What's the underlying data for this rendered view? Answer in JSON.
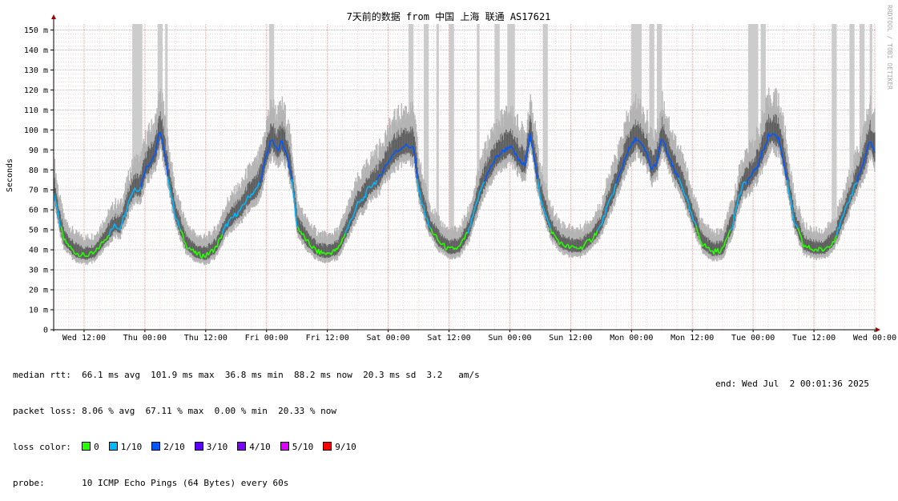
{
  "chart_data": {
    "type": "line",
    "title": "7天前的数据 from 中国 上海 联通 AS17621",
    "ylabel": "Seconds",
    "watermark": "RRDTOOL / TOBI OETIKER",
    "ylim": [
      0,
      153
    ],
    "ytick_unit_suffix": " m",
    "yticks": [
      0,
      10,
      20,
      30,
      40,
      50,
      60,
      70,
      80,
      90,
      100,
      110,
      120,
      130,
      140,
      150
    ],
    "xticks": [
      "Wed 12:00",
      "Thu 00:00",
      "Thu 12:00",
      "Fri 00:00",
      "Fri 12:00",
      "Sat 00:00",
      "Sat 12:00",
      "Sun 00:00",
      "Sun 12:00",
      "Mon 00:00",
      "Mon 12:00",
      "Tue 00:00",
      "Tue 12:00",
      "Wed 00:00"
    ],
    "x_unit": "hours since Wed 00:00",
    "x_start": 6.0,
    "x_end": 168.0,
    "grid": true,
    "series": [
      {
        "name": "median rtt",
        "x": [
          6,
          7,
          8,
          10,
          12,
          14,
          16,
          18,
          19,
          20,
          21,
          22,
          23,
          24,
          25,
          26,
          27,
          28,
          29,
          30,
          32,
          34,
          36,
          38,
          40,
          42,
          43,
          44,
          45,
          46,
          47,
          48,
          49,
          50,
          51,
          52,
          53,
          54,
          56,
          58,
          60,
          62,
          64,
          66,
          67,
          68,
          69,
          70,
          71,
          72,
          73,
          74,
          75,
          76,
          77,
          78,
          80,
          82,
          84,
          86,
          88,
          90,
          91,
          92,
          93,
          94,
          95,
          96,
          97,
          98,
          99,
          100,
          101,
          102,
          104,
          106,
          108,
          110,
          112,
          114,
          115,
          116,
          117,
          118,
          119,
          120,
          121,
          122,
          123,
          124,
          125,
          126,
          128,
          130,
          132,
          134,
          136,
          138,
          139,
          140,
          141,
          142,
          143,
          144,
          145,
          146,
          147,
          148,
          149,
          150,
          152,
          154,
          156,
          158,
          160,
          162,
          163,
          164,
          165,
          166,
          167,
          168
        ],
        "values": [
          70,
          55,
          45,
          39,
          37,
          38,
          45,
          52,
          51,
          58,
          66,
          71,
          70,
          80,
          84,
          88,
          100,
          86,
          70,
          57,
          43,
          38,
          37,
          41,
          52,
          58,
          60,
          65,
          68,
          70,
          76,
          88,
          95,
          90,
          94,
          88,
          75,
          52,
          44,
          39,
          38,
          40,
          51,
          63,
          65,
          70,
          73,
          75,
          80,
          84,
          88,
          90,
          92,
          92,
          91,
          70,
          52,
          44,
          40,
          41,
          50,
          68,
          75,
          80,
          85,
          88,
          90,
          92,
          88,
          84,
          82,
          99,
          82,
          67,
          50,
          43,
          41,
          41,
          45,
          52,
          60,
          66,
          73,
          80,
          88,
          92,
          96,
          92,
          88,
          80,
          84,
          96,
          82,
          72,
          56,
          43,
          39,
          40,
          48,
          53,
          65,
          72,
          75,
          78,
          83,
          90,
          97,
          98,
          96,
          85,
          55,
          42,
          40,
          40,
          45,
          58,
          65,
          72,
          78,
          85,
          95,
          88
        ]
      }
    ],
    "sd_band_ms": 20.3,
    "loss_spike_ranges": [
      [
        21.5,
        23.5
      ],
      [
        26.5,
        27.5
      ],
      [
        28.0,
        28.5
      ],
      [
        48.5,
        49.5
      ],
      [
        76.0,
        77.0
      ],
      [
        79.0,
        80.0
      ],
      [
        81.5,
        82.0
      ],
      [
        84.0,
        85.0
      ],
      [
        89.5,
        90.0
      ],
      [
        93.0,
        94.0
      ],
      [
        95.5,
        97.0
      ],
      [
        102.5,
        103.5
      ],
      [
        120.0,
        122.0
      ],
      [
        123.5,
        124.5
      ],
      [
        125.0,
        126.0
      ],
      [
        143.0,
        145.0
      ],
      [
        145.5,
        146.5
      ],
      [
        159.5,
        160.5
      ],
      [
        163.0,
        164.0
      ],
      [
        165.0,
        166.0
      ],
      [
        167.0,
        167.5
      ]
    ],
    "loss_colors": [
      {
        "label": "0",
        "color": "#26ff00"
      },
      {
        "label": "1/10",
        "color": "#00b8ff"
      },
      {
        "label": "2/10",
        "color": "#0059ff"
      },
      {
        "label": "3/10",
        "color": "#5e00ff"
      },
      {
        "label": "4/10",
        "color": "#7e00ff"
      },
      {
        "label": "5/10",
        "color": "#dd00ff"
      },
      {
        "label": "9/10",
        "color": "#ff0000"
      }
    ]
  },
  "stats": {
    "median_rtt": "median rtt:  66.1 ms avg  101.9 ms max  36.8 ms min  88.2 ms now  20.3 ms sd  3.2   am/s",
    "packet_loss": "packet loss: 8.06 % avg  67.11 % max  0.00 % min  20.33 % now",
    "loss_color_label": "loss color:",
    "probe": "probe:       10 ICMP Echo Pings (64 Bytes) every 60s",
    "end": "end: Wed Jul  2 00:01:36 2025"
  }
}
